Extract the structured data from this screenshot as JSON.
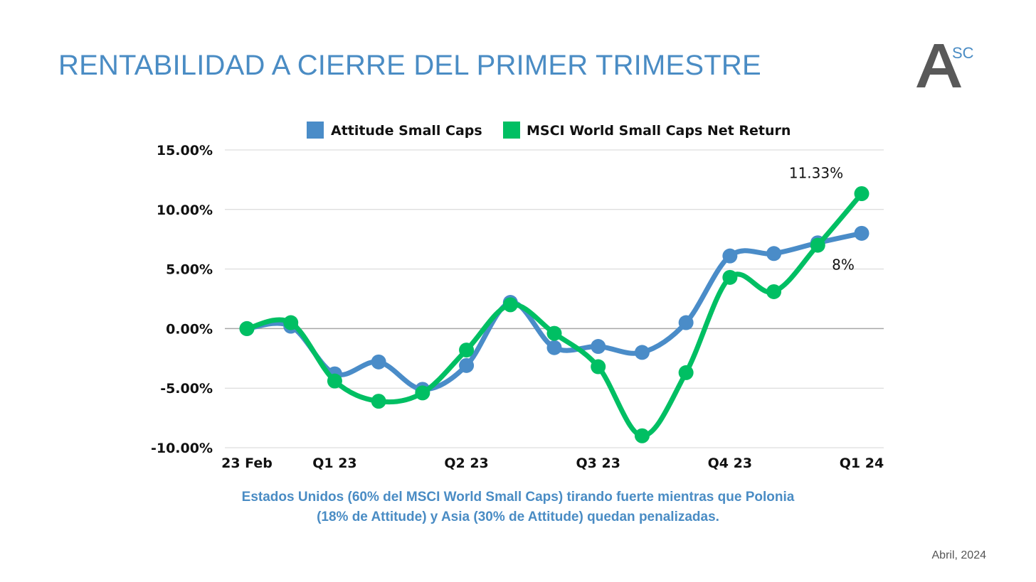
{
  "header": {
    "title": "RENTABILIDAD A CIERRE DEL PRIMER TRIMESTRE",
    "logo_letter": "A",
    "logo_superscript": "SC"
  },
  "caption": {
    "line1": "Estados Unidos (60% del MSCI World Small Caps) tirando fuerte mientras que Polonia",
    "line2": "(18% de Attitude) y Asia (30% de Attitude) quedan penalizadas."
  },
  "footer": {
    "date": "Abril, 2024"
  },
  "colors": {
    "title": "#4a8cc4",
    "series_attitude": "#4a8cc8",
    "series_msci": "#00bf63",
    "grid": "#d4d4d4",
    "zero_line": "#a8a8a8",
    "logo": "#595959"
  },
  "chart_data": {
    "type": "line",
    "title": "",
    "xlabel": "",
    "ylabel": "",
    "ylim": [
      -10,
      15
    ],
    "yticks": [
      15,
      10,
      5,
      0,
      -5,
      -10
    ],
    "ytick_labels": [
      "15.00%",
      "10.00%",
      "5.00%",
      "0.00%",
      "-5.00%",
      "-10.00%"
    ],
    "x_tick_labels": [
      {
        "index": 0,
        "label": "23 Feb"
      },
      {
        "index": 2,
        "label": "Q1 23"
      },
      {
        "index": 5,
        "label": "Q2 23"
      },
      {
        "index": 8,
        "label": "Q3 23"
      },
      {
        "index": 11,
        "label": "Q4 23"
      },
      {
        "index": 14,
        "label": "Q1 24"
      }
    ],
    "point_count": 15,
    "legend_position": "top",
    "grid": true,
    "series": [
      {
        "name": "Attitude Small Caps",
        "color": "#4a8cc8",
        "values": [
          0.0,
          0.2,
          -3.8,
          -2.8,
          -5.1,
          -3.1,
          2.2,
          -1.6,
          -1.5,
          -2.0,
          0.5,
          6.1,
          6.3,
          7.2,
          8.0
        ]
      },
      {
        "name": "MSCI World Small Caps Net Return",
        "color": "#00bf63",
        "values": [
          0.0,
          0.5,
          -4.4,
          -6.1,
          -5.4,
          -1.8,
          2.0,
          -0.4,
          -3.2,
          -9.0,
          -3.7,
          4.3,
          3.1,
          7.0,
          11.33
        ]
      }
    ],
    "annotations": [
      {
        "text": "11.33%",
        "series": 1,
        "index": 14
      },
      {
        "text": "8%",
        "series": 0,
        "index": 14
      }
    ]
  }
}
